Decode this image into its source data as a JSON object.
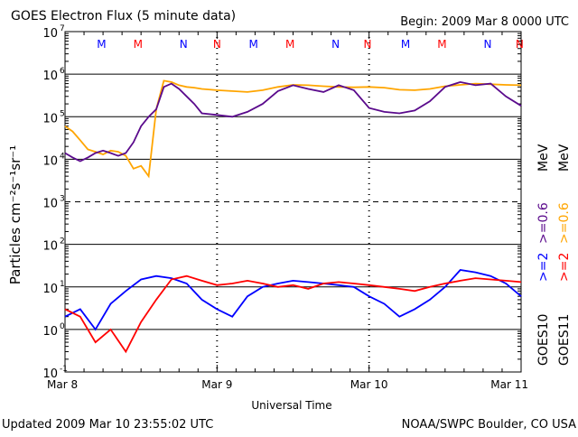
{
  "header": {
    "title": "GOES Electron Flux (5 minute data)",
    "begin": "Begin: 2009 Mar 8 0000 UTC"
  },
  "footer": {
    "updated": "Updated 2009 Mar 10 23:55:02 UTC",
    "credit": "NOAA/SWPC Boulder, CO USA"
  },
  "right_labels": {
    "goes11_label": "GOES11",
    "goes10_label": "GOES10",
    "goes11_e2": ">=2",
    "goes11_e06": ">=0.6",
    "goes11_unit": "MeV",
    "goes10_e2": ">=2",
    "goes10_e06": ">=0.6",
    "goes10_unit": "MeV"
  },
  "colors": {
    "goes10_e2": "#0000ff",
    "goes11_e2": "#ff0000",
    "goes10_e06": "#5a0a8c",
    "goes11_e06": "#ffa500",
    "grid": "#000000"
  },
  "markers": {
    "M": "M",
    "N": "N"
  },
  "chart_data": {
    "type": "line",
    "title": "GOES Electron Flux (5 minute data)",
    "xlabel": "Universal Time",
    "ylabel": "Particles cm⁻²s⁻¹sr⁻¹",
    "y_scale": "log",
    "ylim": [
      0.1,
      10000000
    ],
    "y_ticks": [
      {
        "exp": "-1",
        "label": "10"
      },
      {
        "exp": "0",
        "label": "10"
      },
      {
        "exp": "1",
        "label": "10"
      },
      {
        "exp": "2",
        "label": "10"
      },
      {
        "exp": "3",
        "label": "10"
      },
      {
        "exp": "4",
        "label": "10"
      },
      {
        "exp": "5",
        "label": "10"
      },
      {
        "exp": "6",
        "label": "10"
      },
      {
        "exp": "7",
        "label": "10"
      }
    ],
    "x_ticks": [
      "Mar 8",
      "Mar 9",
      "Mar 10",
      "Mar 11"
    ],
    "xlim_days": [
      0,
      3
    ],
    "marker_rows": [
      {
        "letter": "M",
        "color": "#0000ff",
        "day": 0.24
      },
      {
        "letter": "M",
        "color": "#ff0000",
        "day": 0.48
      },
      {
        "letter": "N",
        "color": "#0000ff",
        "day": 0.78
      },
      {
        "letter": "N",
        "color": "#ff0000",
        "day": 1.0
      },
      {
        "letter": "M",
        "color": "#0000ff",
        "day": 1.24
      },
      {
        "letter": "M",
        "color": "#ff0000",
        "day": 1.48
      },
      {
        "letter": "N",
        "color": "#0000ff",
        "day": 1.78
      },
      {
        "letter": "N",
        "color": "#ff0000",
        "day": 1.99
      },
      {
        "letter": "M",
        "color": "#0000ff",
        "day": 2.24
      },
      {
        "letter": "M",
        "color": "#ff0000",
        "day": 2.48
      },
      {
        "letter": "N",
        "color": "#0000ff",
        "day": 2.78
      },
      {
        "letter": "N",
        "color": "#ff0000",
        "day": 2.99
      }
    ],
    "series": [
      {
        "name": "GOES11 >=0.6 MeV",
        "color": "#ffa500",
        "x": [
          0.0,
          0.05,
          0.1,
          0.15,
          0.2,
          0.25,
          0.3,
          0.35,
          0.4,
          0.45,
          0.5,
          0.55,
          0.6,
          0.65,
          0.7,
          0.75,
          0.8,
          0.85,
          0.9,
          1.0,
          1.1,
          1.2,
          1.3,
          1.4,
          1.5,
          1.6,
          1.7,
          1.8,
          1.9,
          2.0,
          2.1,
          2.2,
          2.3,
          2.4,
          2.5,
          2.6,
          2.7,
          2.8,
          2.9,
          3.0
        ],
        "y": [
          60000,
          45000,
          28000,
          17000,
          15000,
          13000,
          16000,
          15000,
          12000,
          6000,
          7000,
          4000,
          150000,
          700000,
          650000,
          550000,
          500000,
          480000,
          450000,
          420000,
          400000,
          380000,
          420000,
          500000,
          560000,
          550000,
          520000,
          500000,
          490000,
          500000,
          480000,
          430000,
          420000,
          450000,
          520000,
          560000,
          600000,
          580000,
          560000,
          550000
        ]
      },
      {
        "name": "GOES10 >=0.6 MeV",
        "color": "#5a0a8c",
        "x": [
          0.0,
          0.05,
          0.1,
          0.15,
          0.2,
          0.25,
          0.3,
          0.35,
          0.4,
          0.45,
          0.5,
          0.55,
          0.6,
          0.65,
          0.7,
          0.75,
          0.8,
          0.85,
          0.9,
          1.0,
          1.1,
          1.2,
          1.3,
          1.4,
          1.5,
          1.6,
          1.7,
          1.8,
          1.9,
          2.0,
          2.1,
          2.2,
          2.3,
          2.4,
          2.5,
          2.6,
          2.7,
          2.8,
          2.9,
          3.0
        ],
        "y": [
          14000,
          11000,
          9000,
          11000,
          14000,
          16000,
          14000,
          12000,
          14000,
          25000,
          60000,
          100000,
          150000,
          500000,
          600000,
          450000,
          300000,
          200000,
          120000,
          110000,
          100000,
          130000,
          200000,
          400000,
          550000,
          450000,
          380000,
          550000,
          420000,
          160000,
          130000,
          120000,
          140000,
          230000,
          500000,
          650000,
          550000,
          600000,
          300000,
          180000
        ]
      },
      {
        "name": "GOES10 >=2 MeV",
        "color": "#0000ff",
        "x": [
          0.0,
          0.1,
          0.2,
          0.3,
          0.4,
          0.5,
          0.6,
          0.7,
          0.8,
          0.9,
          1.0,
          1.1,
          1.2,
          1.3,
          1.4,
          1.5,
          1.6,
          1.7,
          1.8,
          1.9,
          2.0,
          2.1,
          2.2,
          2.3,
          2.4,
          2.5,
          2.6,
          2.7,
          2.8,
          2.9,
          3.0
        ],
        "y": [
          2,
          3,
          1,
          4,
          8,
          15,
          18,
          16,
          12,
          5,
          3,
          2,
          6,
          10,
          12,
          14,
          13,
          12,
          11,
          10,
          6,
          4,
          2,
          3,
          5,
          10,
          25,
          22,
          18,
          12,
          6
        ]
      },
      {
        "name": "GOES11 >=2 MeV",
        "color": "#ff0000",
        "x": [
          0.0,
          0.1,
          0.2,
          0.3,
          0.4,
          0.5,
          0.6,
          0.7,
          0.8,
          0.9,
          1.0,
          1.1,
          1.2,
          1.3,
          1.4,
          1.5,
          1.6,
          1.7,
          1.8,
          1.9,
          2.0,
          2.1,
          2.2,
          2.3,
          2.4,
          2.5,
          2.6,
          2.7,
          2.8,
          2.9,
          3.0
        ],
        "y": [
          3,
          2,
          0.5,
          1,
          0.3,
          1.5,
          5,
          15,
          18,
          14,
          11,
          12,
          14,
          12,
          10,
          11,
          9,
          12,
          13,
          12,
          11,
          10,
          9,
          8,
          10,
          12,
          14,
          16,
          15,
          14,
          13
        ]
      }
    ],
    "grid": true,
    "legend": "right-vertical"
  }
}
